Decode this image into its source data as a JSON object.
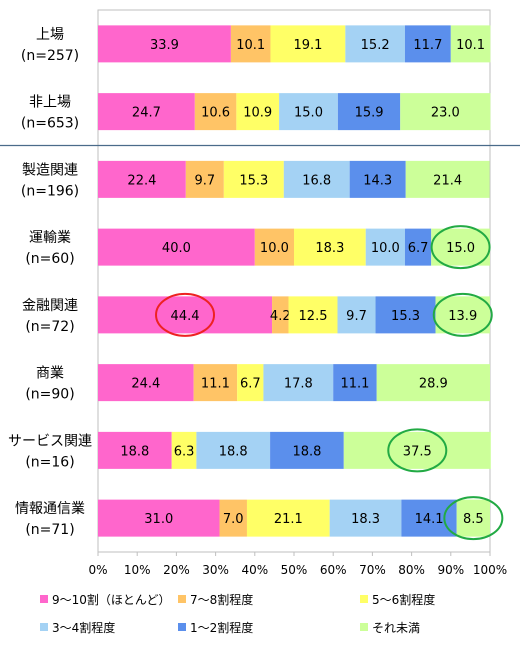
{
  "chart_data": {
    "type": "bar",
    "orientation": "horizontal",
    "stacked": true,
    "percent": true,
    "categories": [
      {
        "name": "上場",
        "n": "(n=257)"
      },
      {
        "name": "非上場",
        "n": "(n=653)"
      },
      {
        "name": "製造関連",
        "n": "(n=196)"
      },
      {
        "name": "運輸業",
        "n": "(n=60)"
      },
      {
        "name": "金融関連",
        "n": "(n=72)"
      },
      {
        "name": "商業",
        "n": "(n=90)"
      },
      {
        "name": "サービス関連",
        "n": "(n=16)"
      },
      {
        "name": "情報通信業",
        "n": "(n=71)"
      }
    ],
    "series": [
      {
        "name": "9～10割（ほとんど）",
        "color": "#ff66cc",
        "values": [
          33.9,
          24.7,
          22.4,
          40.0,
          44.4,
          24.4,
          18.8,
          31.0
        ]
      },
      {
        "name": "7～8割程度",
        "color": "#ffc466",
        "values": [
          10.1,
          10.6,
          9.7,
          10.0,
          4.2,
          11.1,
          0,
          7.0
        ]
      },
      {
        "name": "5～6割程度",
        "color": "#ffff66",
        "values": [
          19.1,
          10.9,
          15.3,
          18.3,
          12.5,
          6.7,
          6.3,
          21.1
        ]
      },
      {
        "name": "3～4割程度",
        "color": "#a4d2f4",
        "values": [
          15.2,
          15.0,
          16.8,
          10.0,
          9.7,
          17.8,
          18.8,
          18.3
        ]
      },
      {
        "name": "1～2割程度",
        "color": "#5b8fec",
        "values": [
          11.7,
          15.9,
          14.3,
          6.7,
          15.3,
          11.1,
          18.8,
          14.1
        ]
      },
      {
        "name": "それ未満",
        "color": "#ccff99",
        "values": [
          10.1,
          23.0,
          21.4,
          15.0,
          13.9,
          28.9,
          37.5,
          8.5
        ]
      }
    ],
    "labels": [
      [
        "33.9",
        "10.1",
        "19.1",
        "15.2",
        "11.7",
        "10.1"
      ],
      [
        "24.7",
        "10.6",
        "10.9",
        "15.0",
        "15.9",
        "23.0"
      ],
      [
        "22.4",
        "9.7",
        "15.3",
        "16.8",
        "14.3",
        "21.4"
      ],
      [
        "40.0",
        "10.0",
        "18.3",
        "10.0",
        "6.7",
        "15.0"
      ],
      [
        "44.4",
        "4.2",
        "12.5",
        "9.7",
        "15.3",
        "13.9"
      ],
      [
        "24.4",
        "11.1",
        "6.7",
        "17.8",
        "11.1",
        "28.9"
      ],
      [
        "18.8",
        "",
        "6.3",
        "18.8",
        "18.8",
        "37.5"
      ],
      [
        "31.0",
        "7.0",
        "21.1",
        "18.3",
        "14.1",
        "8.5"
      ]
    ],
    "xaxis": {
      "min": 0,
      "max": 100,
      "ticks": [
        "0%",
        "10%",
        "20%",
        "30%",
        "40%",
        "50%",
        "60%",
        "70%",
        "80%",
        "90%",
        "100%"
      ]
    },
    "grid": false,
    "legend_position": "bottom",
    "highlights": [
      {
        "category": 3,
        "series": 5,
        "color": "#22aa44"
      },
      {
        "category": 4,
        "series": 0,
        "color": "#ee2222"
      },
      {
        "category": 4,
        "series": 5,
        "color": "#22aa44"
      },
      {
        "category": 6,
        "series": 5,
        "color": "#22aa44"
      },
      {
        "category": 7,
        "series": 5,
        "color": "#22aa44"
      }
    ],
    "separator_after_category": 1,
    "separator_color": "#4a6b8a"
  }
}
